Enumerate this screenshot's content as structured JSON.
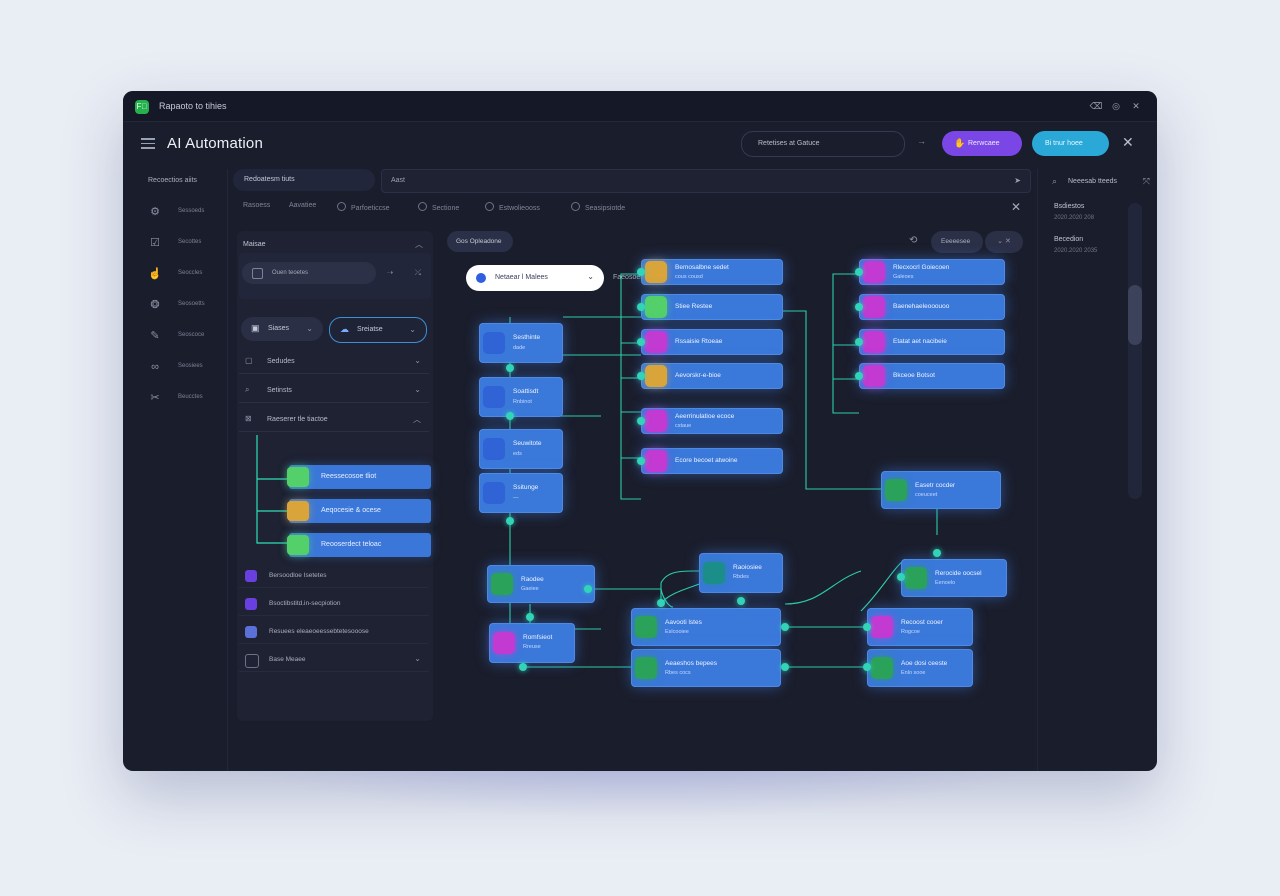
{
  "titlebar": {
    "title": "Rapaoto to tihies",
    "icons": [
      "trash-icon",
      "settings-icon",
      "close-icon"
    ]
  },
  "header": {
    "title": "AI Automation",
    "search_text": "Retetises at Gatuce",
    "arrow": "→",
    "primary_button": "Rerwcaee",
    "secondary_button": "Bi tnur hoee"
  },
  "left_nav": {
    "title": "Recoectios aiits",
    "items": [
      {
        "label": "Sessoeds",
        "icon": "puzzle-icon"
      },
      {
        "label": "Secottes",
        "icon": "checkbox-icon"
      },
      {
        "label": "Seoccles",
        "icon": "hand-icon"
      },
      {
        "label": "Seosoetts",
        "icon": "brain-icon"
      },
      {
        "label": "Seoscoce",
        "icon": "tag-icon"
      },
      {
        "label": "Seosiees",
        "icon": "link-icon"
      },
      {
        "label": "Beucctes",
        "icon": "tools-icon"
      }
    ]
  },
  "toolbar": {
    "left_label": "Redoatesm tiuts",
    "main_label": "Aast"
  },
  "filters": [
    "Rasoess",
    "Aavatiee",
    "Parfoeticcse",
    "Sectione",
    "Estwolieooss",
    "Seasipsiotde"
  ],
  "panel": {
    "heading": "Maisae",
    "input_text": "Ouen teoetes",
    "dropdown_a": "Siases",
    "dropdown_b": "Sreiatse",
    "accordions": [
      "Sedudes",
      "Setinsts",
      "Raeserer tle tiactoe"
    ],
    "sub_items": [
      "Reessecosoe tliot",
      "Aeqocesie & ocese",
      "Reooserdect teloac"
    ],
    "rows": [
      "Bersoodloe Isetetes",
      "Bsoctibstitd.in-secpiotion",
      "Resuees eleaeoeessebtetesooose",
      "Base Meaee"
    ]
  },
  "canvas": {
    "pill": "Gos Opleadone",
    "tool_label": "Eeeeesee",
    "select_value": "Netaear l Malees",
    "select_caption": "Faeosoetion tatspeont",
    "nodes": [
      {
        "title": "Sesthinte",
        "sub": "dade"
      },
      {
        "title": "Soattisdt",
        "sub": "Rnbinot"
      },
      {
        "title": "Seuwitote",
        "sub": "eds"
      },
      {
        "title": "Ssitunge",
        "sub": "—"
      },
      {
        "title": "Bemosalbne sedet",
        "sub": "cous cousd"
      },
      {
        "title": "Stiee Restee",
        "sub": "—"
      },
      {
        "title": "Rssaisie Rtoeae",
        "sub": "—"
      },
      {
        "title": "Aevorskr-e-bioe",
        "sub": "—"
      },
      {
        "title": "Aeerrinulatioe ecoce",
        "sub": "cstaue"
      },
      {
        "title": "Ecore becoet atwoine",
        "sub": ""
      },
      {
        "title": "Rlecxocrl Goiecoen",
        "sub": "Galeoes"
      },
      {
        "title": "Baenehaeleooouoo",
        "sub": ""
      },
      {
        "title": "Etatat aet nacibeie",
        "sub": ""
      },
      {
        "title": "Bkceoe Botsot",
        "sub": ""
      },
      {
        "title": "Easetr cocder",
        "sub": "coeuceet"
      },
      {
        "title": "Rerocide oocsel",
        "sub": "Eenoelo"
      },
      {
        "title": "Raodee",
        "sub": "Gaeiee"
      },
      {
        "title": "Raoiosiee",
        "sub": "Rbdes"
      },
      {
        "title": "Romfsieot",
        "sub": "Rreuse"
      },
      {
        "title": "Aavooti lstes",
        "sub": "Eslcooiee"
      },
      {
        "title": "Aeaeshos bepees",
        "sub": "Rbes cocs"
      },
      {
        "title": "Recoost cooer",
        "sub": "Rogcoe"
      },
      {
        "title": "Aoe dosi ceeste",
        "sub": "Enlo sooe"
      }
    ]
  },
  "right_panel": {
    "title": "Neeesab tteeds",
    "items": [
      {
        "title": "Bsdiestos",
        "sub": "2020.2020 208"
      },
      {
        "title": "Becedion",
        "sub": "2020.2020 2035"
      }
    ]
  }
}
